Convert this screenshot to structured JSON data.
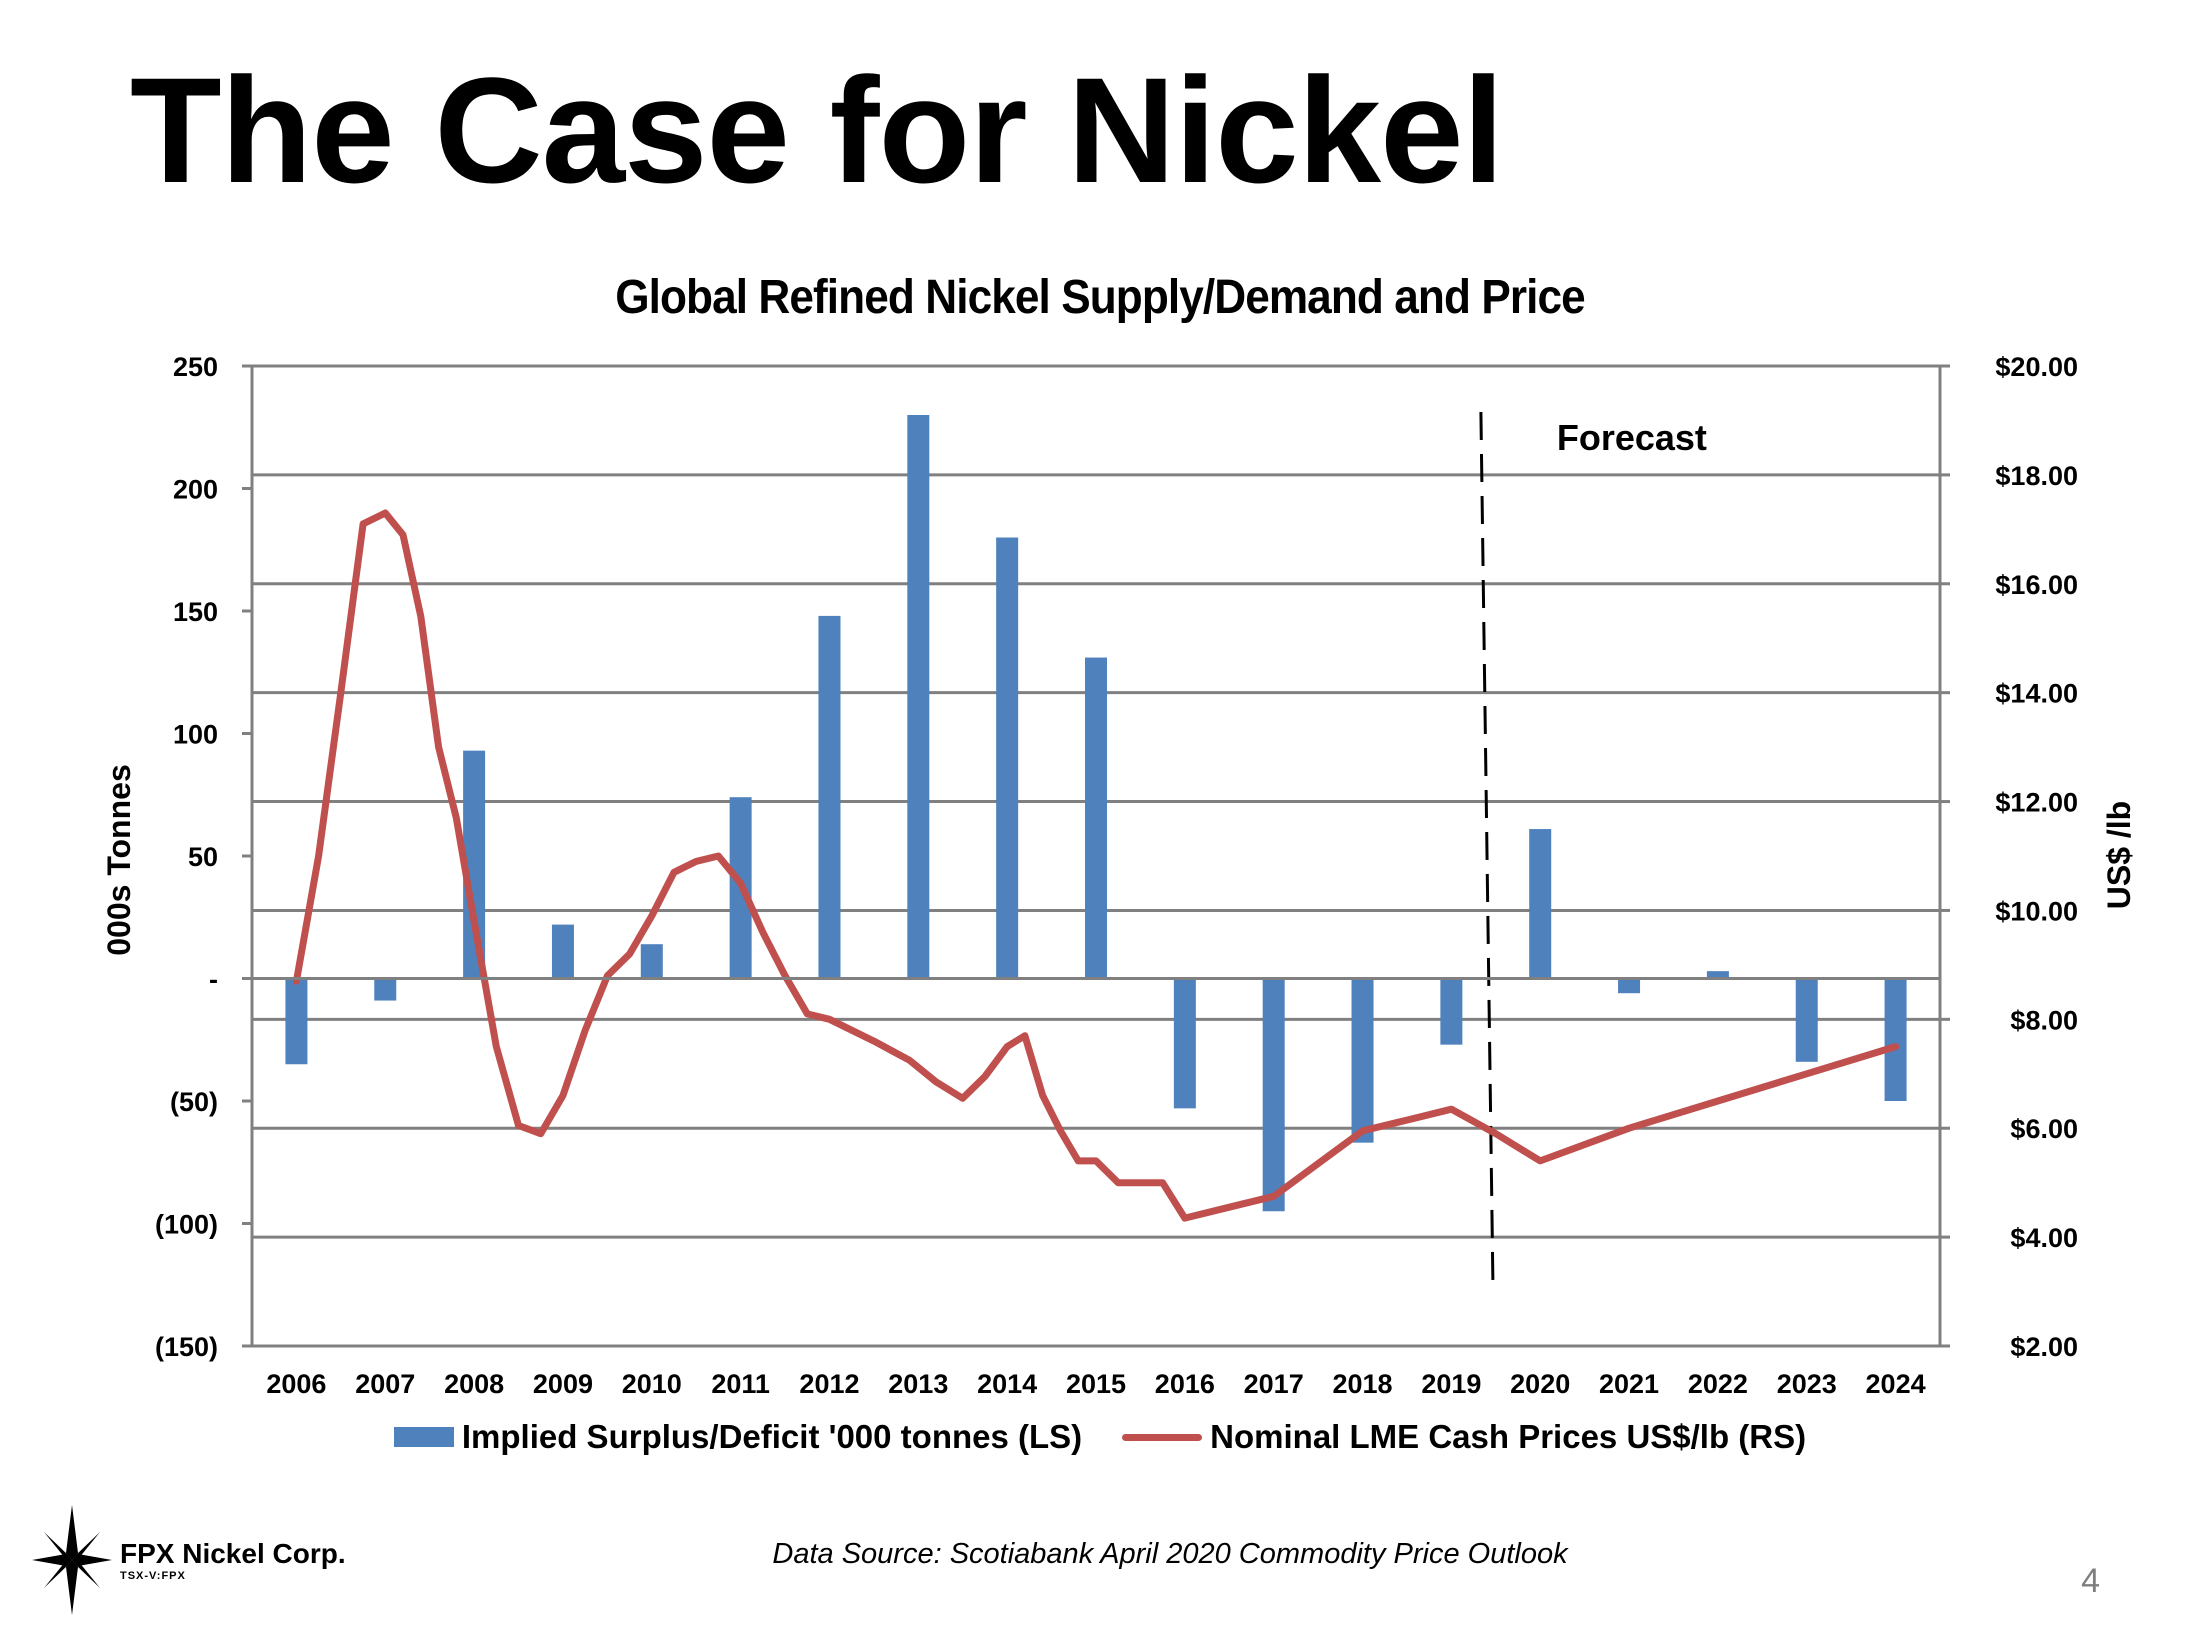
{
  "slide": {
    "title": "The Case for Nickel",
    "page_number": "4",
    "data_source": "Data Source: Scotiabank April 2020 Commodity Price Outlook",
    "logo": {
      "name": "FPX Nickel Corp.",
      "ticker": "TSX-V:FPX",
      "icon": "star-compass-icon"
    }
  },
  "colors": {
    "bar": "#4f81bd",
    "line": "#c0504d",
    "grid": "#808080"
  },
  "chart_data": {
    "type": "bar",
    "title": "Global Refined Nickel Supply/Demand and Price",
    "ylabel_left": "000s Tonnes",
    "ylabel_right": "US$ /lb",
    "ylim_left": [
      -150,
      250
    ],
    "ylim_right": [
      2,
      20
    ],
    "left_ticks": [
      {
        "value": 250,
        "label": "250"
      },
      {
        "value": 200,
        "label": "200"
      },
      {
        "value": 150,
        "label": "150"
      },
      {
        "value": 100,
        "label": "100"
      },
      {
        "value": 50,
        "label": "50"
      },
      {
        "value": 0,
        "label": "-"
      },
      {
        "value": -50,
        "label": "(50)"
      },
      {
        "value": -100,
        "label": "(100)"
      },
      {
        "value": -150,
        "label": "(150)"
      }
    ],
    "right_ticks": [
      {
        "value": 20,
        "label": "$20.00"
      },
      {
        "value": 18,
        "label": "$18.00"
      },
      {
        "value": 16,
        "label": "$16.00"
      },
      {
        "value": 14,
        "label": "$14.00"
      },
      {
        "value": 12,
        "label": "$12.00"
      },
      {
        "value": 10,
        "label": "$10.00"
      },
      {
        "value": 8,
        "label": "$8.00"
      },
      {
        "value": 6,
        "label": "$6.00"
      },
      {
        "value": 4,
        "label": "$4.00"
      },
      {
        "value": 2,
        "label": "$2.00"
      }
    ],
    "categories": [
      "2006",
      "2007",
      "2008",
      "2009",
      "2010",
      "2011",
      "2012",
      "2013",
      "2014",
      "2015",
      "2016",
      "2017",
      "2018",
      "2019",
      "2020",
      "2021",
      "2022",
      "2023",
      "2024"
    ],
    "grid": true,
    "legend_position": "bottom",
    "annotation": {
      "text": "Forecast",
      "x": 2019.4
    },
    "series": [
      {
        "name": "Implied Surplus/Deficit '000 tonnes (LS)",
        "type": "bar",
        "axis": "left",
        "values": [
          -35,
          -9,
          93,
          22,
          14,
          74,
          148,
          230,
          180,
          131,
          -53,
          -95,
          -67,
          -27,
          61,
          -6,
          3,
          -34,
          -50
        ]
      },
      {
        "name": "Nominal LME Cash Prices US$/lb (RS)",
        "type": "line",
        "axis": "right",
        "points": [
          [
            2006.0,
            8.7
          ],
          [
            2006.25,
            11.0
          ],
          [
            2006.5,
            14.0
          ],
          [
            2006.75,
            17.1
          ],
          [
            2007.0,
            17.3
          ],
          [
            2007.2,
            16.9
          ],
          [
            2007.4,
            15.4
          ],
          [
            2007.6,
            13.0
          ],
          [
            2007.8,
            11.7
          ],
          [
            2008.0,
            9.8
          ],
          [
            2008.25,
            7.5
          ],
          [
            2008.5,
            6.05
          ],
          [
            2008.75,
            5.9
          ],
          [
            2009.0,
            6.6
          ],
          [
            2009.25,
            7.8
          ],
          [
            2009.5,
            8.8
          ],
          [
            2009.75,
            9.2
          ],
          [
            2010.0,
            9.9
          ],
          [
            2010.25,
            10.7
          ],
          [
            2010.5,
            10.9
          ],
          [
            2010.75,
            11.0
          ],
          [
            2011.0,
            10.5
          ],
          [
            2011.25,
            9.6
          ],
          [
            2011.5,
            8.8
          ],
          [
            2011.75,
            8.1
          ],
          [
            2012.0,
            8.0
          ],
          [
            2012.5,
            7.6
          ],
          [
            2012.9,
            7.25
          ],
          [
            2013.2,
            6.85
          ],
          [
            2013.5,
            6.55
          ],
          [
            2013.75,
            6.95
          ],
          [
            2014.0,
            7.5
          ],
          [
            2014.2,
            7.7
          ],
          [
            2014.4,
            6.6
          ],
          [
            2014.6,
            5.95
          ],
          [
            2014.8,
            5.4
          ],
          [
            2015.0,
            5.4
          ],
          [
            2015.25,
            5.0
          ],
          [
            2015.5,
            5.0
          ],
          [
            2015.75,
            5.0
          ],
          [
            2016.0,
            4.35
          ],
          [
            2016.5,
            4.55
          ],
          [
            2017.0,
            4.75
          ],
          [
            2017.5,
            5.35
          ],
          [
            2018.0,
            5.95
          ],
          [
            2018.5,
            6.15
          ],
          [
            2019.0,
            6.35
          ],
          [
            2019.5,
            5.9
          ],
          [
            2020.0,
            5.4
          ],
          [
            2021.0,
            6.0
          ],
          [
            2022.0,
            6.5
          ],
          [
            2023.0,
            7.0
          ],
          [
            2024.0,
            7.5
          ]
        ]
      }
    ]
  }
}
